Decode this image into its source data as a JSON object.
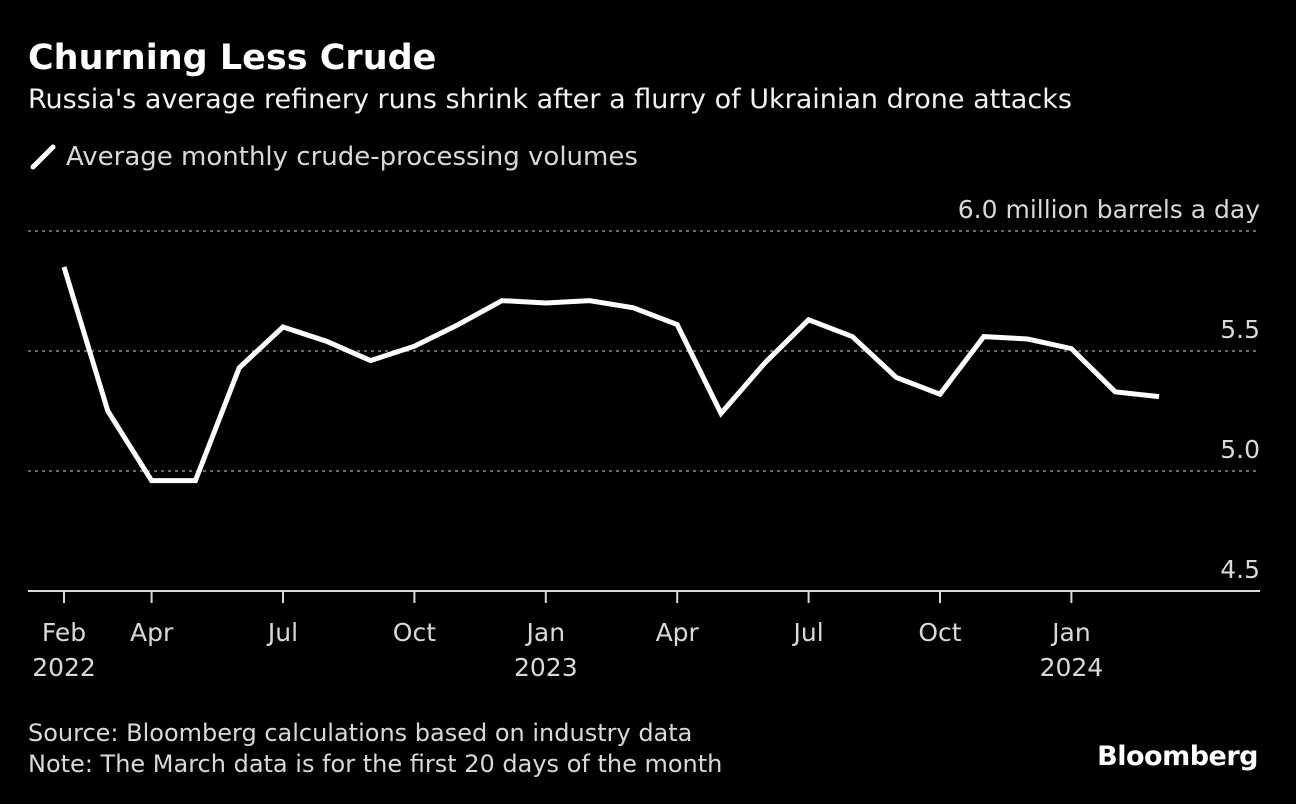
{
  "title": "Churning Less Crude",
  "subtitle": "Russia's average refinery runs shrink after a flurry of Ukrainian drone attacks",
  "legend": {
    "label": "Average monthly crude-processing volumes",
    "icon": "line-swatch-icon"
  },
  "source": "Source: Bloomberg calculations based on industry data",
  "note": "Note: The March data is for the first 20 days of the month",
  "brand": "Bloomberg",
  "colors": {
    "background": "#000000",
    "line": "#ffffff",
    "grid": "#8c8c8c",
    "text": "#d9d9d9"
  },
  "chart_data": {
    "type": "line",
    "title": "Churning Less Crude",
    "subtitle": "Russia's average refinery runs shrink after a flurry of Ukrainian drone attacks",
    "ylabel": "6.0 million barrels a day",
    "ylim": [
      4.5,
      6.0
    ],
    "yticks": [
      {
        "value": 6.0,
        "label": "6.0 million barrels a day"
      },
      {
        "value": 5.5,
        "label": "5.5"
      },
      {
        "value": 5.0,
        "label": "5.0"
      },
      {
        "value": 4.5,
        "label": "4.5"
      }
    ],
    "xticks": [
      {
        "index": 0,
        "lines": [
          "Feb",
          "2022"
        ]
      },
      {
        "index": 2,
        "lines": [
          "Apr"
        ]
      },
      {
        "index": 5,
        "lines": [
          "Jul"
        ]
      },
      {
        "index": 8,
        "lines": [
          "Oct"
        ]
      },
      {
        "index": 11,
        "lines": [
          "Jan",
          "2023"
        ]
      },
      {
        "index": 14,
        "lines": [
          "Apr"
        ]
      },
      {
        "index": 17,
        "lines": [
          "Jul"
        ]
      },
      {
        "index": 20,
        "lines": [
          "Oct"
        ]
      },
      {
        "index": 23,
        "lines": [
          "Jan",
          "2024"
        ]
      }
    ],
    "grid": true,
    "series": [
      {
        "name": "Average monthly crude-processing volumes",
        "x": [
          "2022-02",
          "2022-03",
          "2022-04",
          "2022-05",
          "2022-06",
          "2022-07",
          "2022-08",
          "2022-09",
          "2022-10",
          "2022-11",
          "2022-12",
          "2023-01",
          "2023-02",
          "2023-03",
          "2023-04",
          "2023-05",
          "2023-06",
          "2023-07",
          "2023-08",
          "2023-09",
          "2023-10",
          "2023-11",
          "2023-12",
          "2024-01",
          "2024-02",
          "2024-03"
        ],
        "values": [
          5.85,
          5.25,
          4.96,
          4.96,
          5.43,
          5.6,
          5.54,
          5.46,
          5.52,
          5.61,
          5.71,
          5.7,
          5.71,
          5.68,
          5.61,
          5.24,
          5.45,
          5.63,
          5.56,
          5.39,
          5.32,
          5.56,
          5.55,
          5.51,
          5.33,
          5.31
        ]
      }
    ]
  }
}
